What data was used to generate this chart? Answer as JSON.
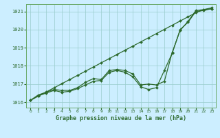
{
  "title": "Graphe pression niveau de la mer (hPa)",
  "bg_color": "#cceeff",
  "line_color": "#2d6a2d",
  "x": [
    0,
    1,
    2,
    3,
    4,
    5,
    6,
    7,
    8,
    9,
    10,
    11,
    12,
    13,
    14,
    15,
    16,
    17,
    18,
    19,
    20,
    21,
    22,
    23
  ],
  "line_straight": [
    1016.1,
    1016.33,
    1016.56,
    1016.79,
    1017.02,
    1017.25,
    1017.48,
    1017.71,
    1017.94,
    1018.17,
    1018.4,
    1018.63,
    1018.86,
    1019.09,
    1019.32,
    1019.55,
    1019.78,
    1020.01,
    1020.24,
    1020.47,
    1020.7,
    1020.93,
    1021.1,
    1021.2
  ],
  "line_dip1": [
    1016.1,
    1016.4,
    1016.55,
    1016.7,
    1016.65,
    1016.65,
    1016.8,
    1017.1,
    1017.3,
    1017.25,
    1017.75,
    1017.8,
    1017.75,
    1017.55,
    1016.95,
    1017.0,
    1016.95,
    1017.15,
    1018.75,
    1019.95,
    1020.45,
    1021.05,
    1021.1,
    1021.15
  ],
  "line_dip2": [
    1016.1,
    1016.35,
    1016.5,
    1016.65,
    1016.55,
    1016.6,
    1016.75,
    1016.95,
    1017.15,
    1017.2,
    1017.65,
    1017.75,
    1017.65,
    1017.4,
    1016.85,
    1016.7,
    1016.8,
    1017.75,
    1018.7,
    1020.0,
    1020.4,
    1021.0,
    1021.05,
    1021.15
  ],
  "ylim": [
    1015.7,
    1021.4
  ],
  "yticks": [
    1016,
    1017,
    1018,
    1019,
    1020,
    1021
  ],
  "xticks": [
    0,
    1,
    2,
    3,
    4,
    5,
    6,
    7,
    8,
    9,
    10,
    11,
    12,
    13,
    14,
    15,
    16,
    17,
    18,
    19,
    20,
    21,
    22,
    23
  ]
}
